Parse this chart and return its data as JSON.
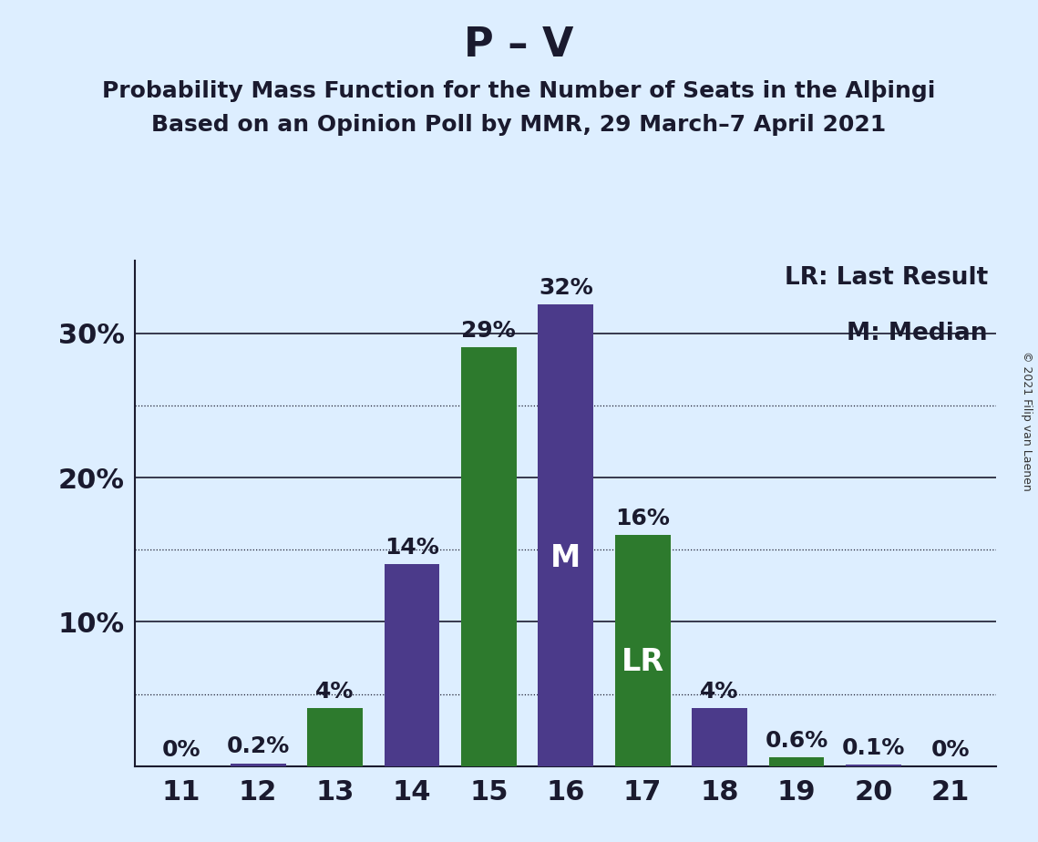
{
  "title": "P – V",
  "subtitle1": "Probability Mass Function for the Number of Seats in the Alþingi",
  "subtitle2": "Based on an Opinion Poll by MMR, 29 March–7 April 2021",
  "copyright": "© 2021 Filip van Laenen",
  "seats": [
    11,
    12,
    13,
    14,
    15,
    16,
    17,
    18,
    19,
    20,
    21
  ],
  "green_values": [
    0.0,
    0.0,
    4.0,
    0.0,
    29.0,
    0.0,
    16.0,
    0.0,
    0.6,
    0.0,
    0.0
  ],
  "purple_values": [
    0.0,
    0.2,
    0.0,
    14.0,
    0.0,
    32.0,
    0.0,
    4.0,
    0.0,
    0.1,
    0.0
  ],
  "green_labels": [
    "",
    "",
    "4%",
    "",
    "29%",
    "",
    "16%",
    "",
    "0.6%",
    "",
    ""
  ],
  "purple_labels": [
    "0%",
    "0.2%",
    "",
    "14%",
    "",
    "32%",
    "",
    "4%",
    "",
    "0.1%",
    "0%"
  ],
  "green_color": "#2d7a2d",
  "purple_color": "#4b3a8a",
  "background_color": "#ddeeff",
  "bar_label_color_dark": "#1a1a2e",
  "bar_label_color_white": "#ffffff",
  "median_label_seat": 16,
  "lr_label_seat": 17,
  "legend_lr": "LR: Last Result",
  "legend_m": "M: Median",
  "ylim": [
    0,
    35
  ],
  "solid_lines": [
    10,
    20,
    30
  ],
  "dotted_lines": [
    5,
    15,
    25
  ],
  "ytick_positions": [
    10,
    20,
    30
  ],
  "ytick_labels_show": [
    "10%",
    "20%",
    "30%"
  ],
  "title_fontsize": 32,
  "subtitle_fontsize": 18,
  "axis_label_fontsize": 22,
  "bar_label_fontsize": 18,
  "legend_fontsize": 19,
  "median_lr_fontsize": 24,
  "copyright_fontsize": 9
}
